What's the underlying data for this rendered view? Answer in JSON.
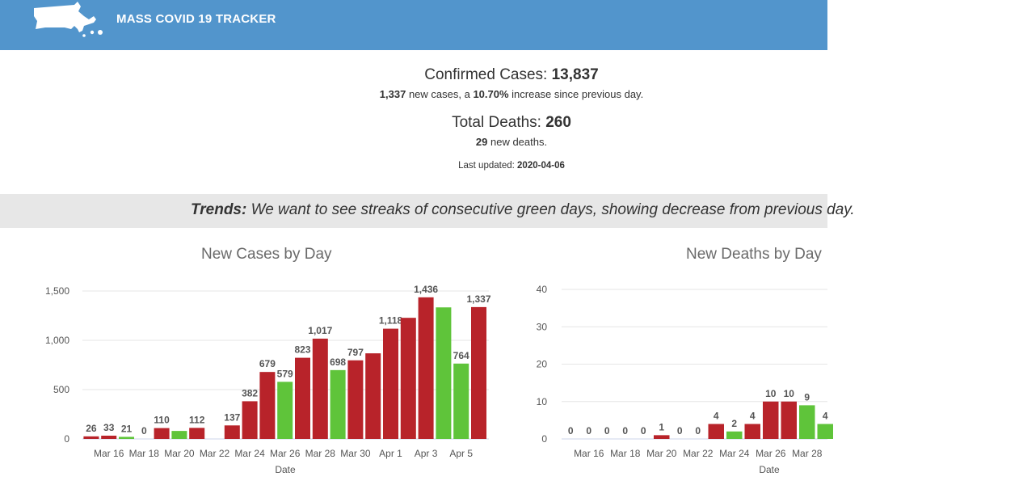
{
  "header": {
    "title": "MASS COVID 19 TRACKER",
    "logo_icon": "massachusetts-map-icon"
  },
  "summary": {
    "confirmed_label": "Confirmed Cases: ",
    "confirmed_value": "13,837",
    "new_cases_value": "1,337",
    "new_cases_text": " new cases, a ",
    "increase_pct": "10.70%",
    "increase_text": " increase since previous day.",
    "deaths_label": "Total Deaths: ",
    "deaths_value": "260",
    "new_deaths_value": "29",
    "new_deaths_text": " new deaths.",
    "updated_label": "Last updated: ",
    "updated_value": "2020-04-06"
  },
  "trends": {
    "label": "Trends:",
    "text": " We want to see streaks of consecutive green days, showing decrease from previous day."
  },
  "colors": {
    "increase": "#b8232a",
    "decrease": "#5fc43a",
    "header": "#5295cc"
  },
  "chart_data": [
    {
      "type": "bar",
      "title": "New Cases by Day",
      "xlabel": "Date",
      "ylabel": "",
      "ylim": [
        0,
        1500
      ],
      "yticks": [
        0,
        500,
        1000,
        1500
      ],
      "ytick_labels": [
        "0",
        "500",
        "1,000",
        "1,500"
      ],
      "categories": [
        "Mar 15",
        "Mar 16",
        "Mar 17",
        "Mar 18",
        "Mar 19",
        "Mar 20",
        "Mar 21",
        "Mar 22",
        "Mar 23",
        "Mar 24",
        "Mar 25",
        "Mar 26",
        "Mar 27",
        "Mar 28",
        "Mar 29",
        "Mar 30",
        "Mar 31",
        "Apr 1",
        "Apr 2",
        "Apr 3",
        "Apr 4",
        "Apr 5",
        "Apr 6"
      ],
      "xtick_labels": [
        "Mar 16",
        "Mar 18",
        "Mar 20",
        "Mar 22",
        "Mar 24",
        "Mar 26",
        "Mar 28",
        "Mar 30",
        "Apr 1",
        "Apr 3",
        "Apr 5"
      ],
      "values": [
        26,
        33,
        21,
        0,
        110,
        81,
        112,
        0,
        137,
        382,
        679,
        579,
        823,
        1017,
        698,
        797,
        868,
        1118,
        1228,
        1436,
        1334,
        764,
        1337
      ],
      "labels": [
        "26",
        "33",
        "21",
        "0",
        "110",
        "",
        "112",
        "",
        "137",
        "382",
        "679",
        "579",
        "823",
        "1,017",
        "698",
        "797",
        "",
        "1,118",
        "",
        "1,436",
        "",
        "764",
        "1,337"
      ],
      "increase": [
        true,
        true,
        false,
        false,
        true,
        false,
        true,
        false,
        true,
        true,
        true,
        false,
        true,
        true,
        false,
        true,
        true,
        true,
        true,
        true,
        false,
        false,
        true
      ],
      "grid": true,
      "legend": "none"
    },
    {
      "type": "bar",
      "title": "New Deaths by Day",
      "xlabel": "Date",
      "ylabel": "",
      "ylim": [
        0,
        40
      ],
      "yticks": [
        0,
        10,
        20,
        30,
        40
      ],
      "ytick_labels": [
        "0",
        "10",
        "20",
        "30",
        "40"
      ],
      "categories": [
        "Mar 15",
        "Mar 16",
        "Mar 17",
        "Mar 18",
        "Mar 19",
        "Mar 20",
        "Mar 21",
        "Mar 22",
        "Mar 23",
        "Mar 24",
        "Mar 25",
        "Mar 26",
        "Mar 27",
        "Mar 28",
        "Mar 29"
      ],
      "xtick_labels": [
        "Mar 16",
        "Mar 18",
        "Mar 20",
        "Mar 22",
        "Mar 24",
        "Mar 26",
        "Mar 28"
      ],
      "values": [
        0,
        0,
        0,
        0,
        0,
        1,
        0,
        0,
        4,
        2,
        4,
        10,
        10,
        9,
        4
      ],
      "labels": [
        "0",
        "0",
        "0",
        "0",
        "0",
        "1",
        "0",
        "0",
        "4",
        "2",
        "4",
        "10",
        "10",
        "9",
        "4"
      ],
      "increase": [
        false,
        false,
        false,
        false,
        false,
        true,
        false,
        false,
        true,
        false,
        true,
        true,
        true,
        false,
        false
      ],
      "grid": true,
      "legend": "none"
    }
  ]
}
